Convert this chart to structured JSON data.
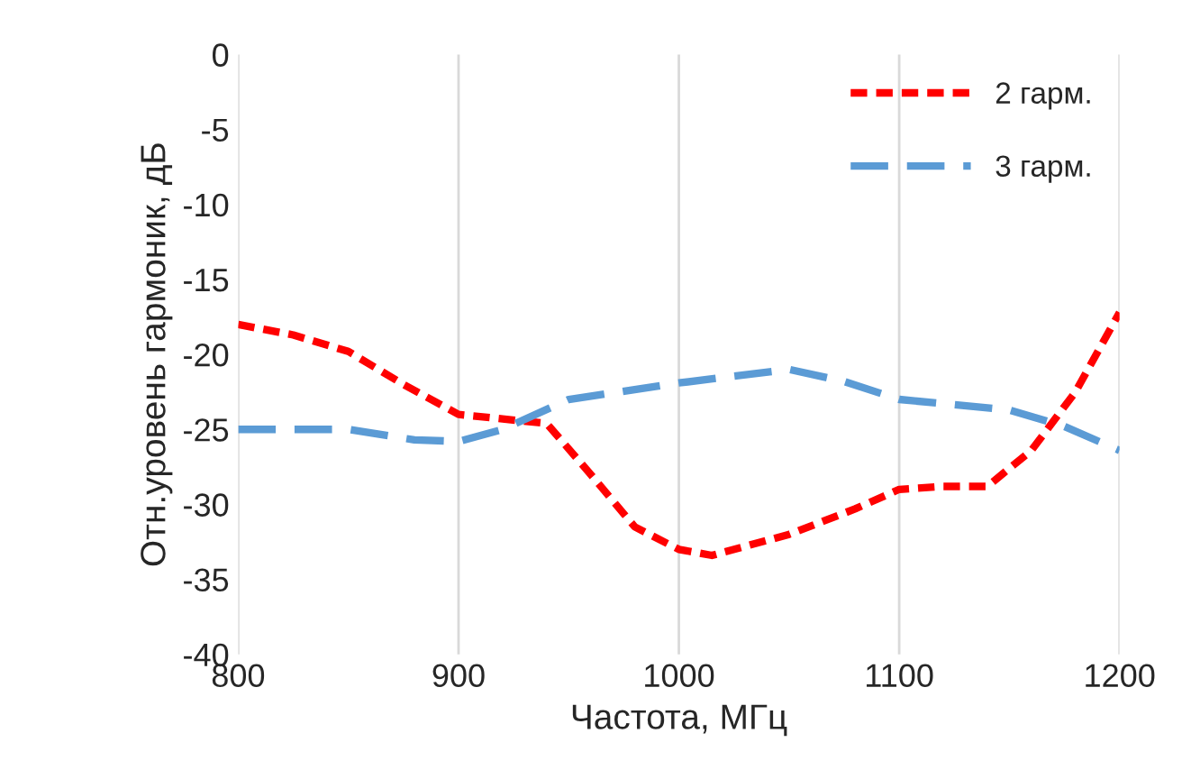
{
  "chart_data": {
    "type": "line",
    "xlabel": "Частота, МГц",
    "ylabel": "Отн.уровень гармоник, дБ",
    "xlim": [
      800,
      1200
    ],
    "xticks": [
      800,
      900,
      1000,
      1100,
      1200
    ],
    "ylim": [
      -40,
      0
    ],
    "yticks": [
      -40,
      -35,
      -30,
      -25,
      -20,
      -15,
      -10,
      -5,
      0
    ],
    "grid": "x",
    "legend": "top right",
    "series": [
      {
        "name": "2 гарм.",
        "color": "#ff0000",
        "line_style": "dotted",
        "x": [
          800,
          825,
          850,
          875,
          900,
          920,
          940,
          960,
          980,
          1000,
          1015,
          1050,
          1080,
          1100,
          1120,
          1140,
          1160,
          1180,
          1200
        ],
        "values": [
          -18,
          -18.7,
          -19.8,
          -22,
          -24,
          -24.3,
          -24.6,
          -28,
          -31.5,
          -33,
          -33.4,
          -32,
          -30.3,
          -29,
          -28.8,
          -28.8,
          -26.4,
          -22.5,
          -17.2
        ]
      },
      {
        "name": "3 гарм.",
        "color": "#5b9bd5",
        "line_style": "dashed",
        "x": [
          800,
          850,
          880,
          900,
          920,
          950,
          1000,
          1050,
          1075,
          1100,
          1150,
          1175,
          1200
        ],
        "values": [
          -25,
          -25,
          -25.7,
          -25.8,
          -25,
          -23,
          -21.9,
          -21,
          -21.8,
          -23,
          -23.7,
          -24.8,
          -26.4
        ]
      }
    ]
  }
}
